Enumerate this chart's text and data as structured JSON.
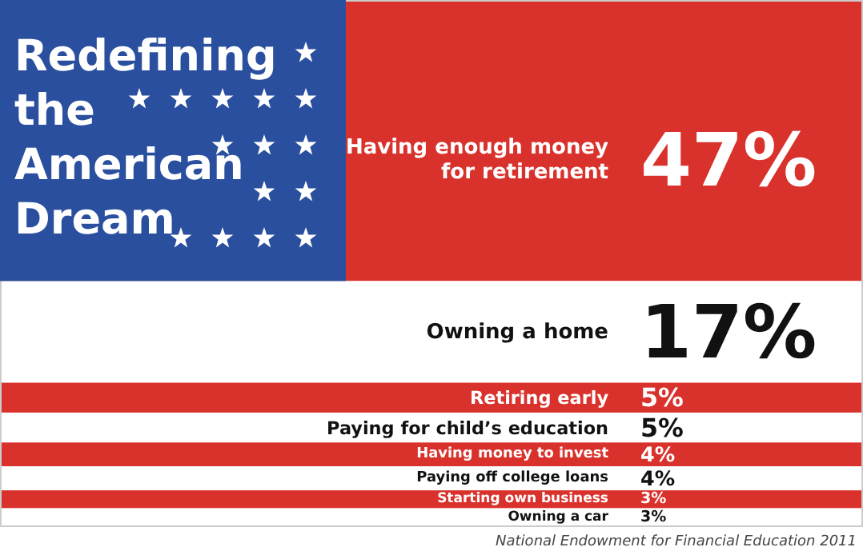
{
  "chart_data": {
    "type": "other",
    "title": "Redefining the American Dream",
    "categories": [
      "Having enough money for retirement",
      "Owning a home",
      "Retiring early",
      "Paying for child’s education",
      "Having money to invest",
      "Paying off college loans",
      "Starting own business",
      "Owning a car"
    ],
    "values": [
      47,
      17,
      5,
      5,
      4,
      4,
      3,
      3
    ],
    "value_labels": [
      "47%",
      "17%",
      "5%",
      "5%",
      "4%",
      "4%",
      "3%",
      "3%"
    ],
    "colors": [
      "#d9312b",
      "#ffffff",
      "#d9312b",
      "#ffffff",
      "#d9312b",
      "#ffffff",
      "#d9312b",
      "#ffffff"
    ],
    "annotations": [
      "National Endowment for Financial Education 2011"
    ]
  }
}
